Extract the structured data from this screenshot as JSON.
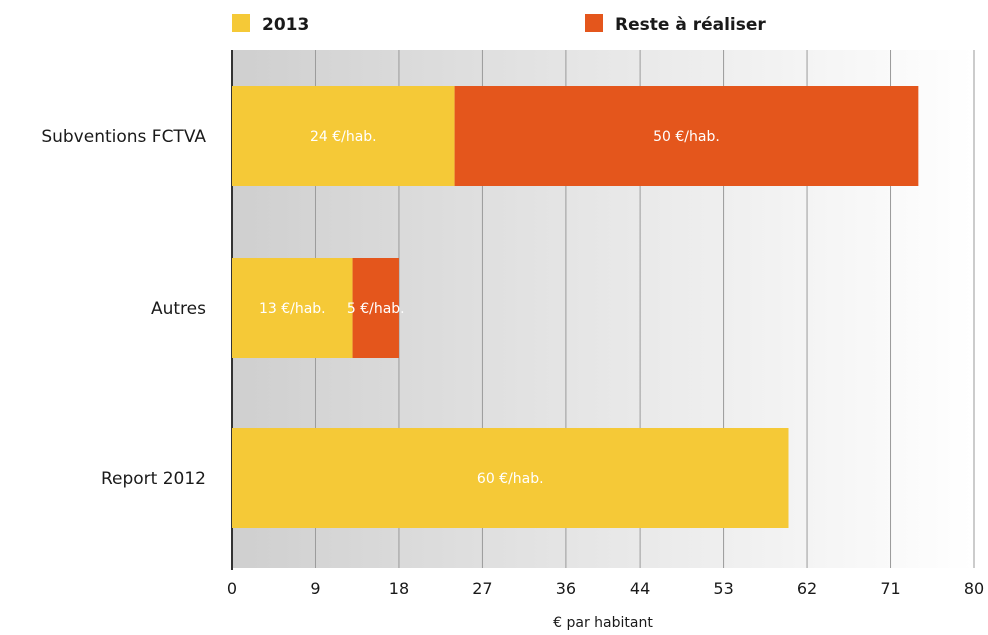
{
  "chart_data": {
    "type": "bar",
    "orientation": "horizontal",
    "stacked": true,
    "categories": [
      "Subventions FCTVA",
      "Autres",
      "Report 2012"
    ],
    "series": [
      {
        "name": "2013",
        "values": [
          24,
          13,
          60
        ],
        "labels": [
          "24 €/hab.",
          "13 €/hab.",
          "60 €/hab."
        ],
        "color": "#f5c937"
      },
      {
        "name": "Reste à réaliser",
        "values": [
          50,
          5,
          0
        ],
        "labels": [
          "50 €/hab.",
          "5 €/hab.",
          ""
        ],
        "color": "#e4561c"
      }
    ],
    "x_ticks": [
      "0",
      "9",
      "18",
      "27",
      "36",
      "44",
      "53",
      "62",
      "71",
      "80"
    ],
    "xlim": [
      0,
      80
    ],
    "xlabel": "€ par habitant",
    "grid": true,
    "legend_position": "top"
  }
}
